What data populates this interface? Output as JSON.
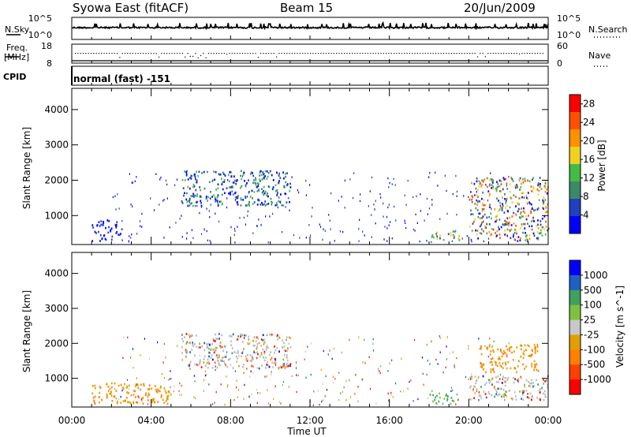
{
  "header": {
    "station": "Syowa East (fitACF)",
    "beam": "Beam 15",
    "date": "20/Jun/2009"
  },
  "noise_panel": {
    "left_label": "N.Sky",
    "right_label": "N.Search",
    "left_ticks": [
      "10^5",
      "10^0"
    ],
    "right_ticks": [
      "10^5",
      "10^0"
    ]
  },
  "freq_panel": {
    "left_label_1": "Freq.",
    "left_label_2": "[MHz]",
    "right_label": "Nave",
    "left_ticks": [
      "18",
      "8"
    ],
    "right_ticks": [
      "60",
      "0"
    ]
  },
  "cpid": {
    "label": "CPID",
    "mode": "normal (fast) -151"
  },
  "colors": {
    "power_scale": [
      "#0000ff",
      "#2040c0",
      "#3a8a6a",
      "#44bb44",
      "#f0d020",
      "#ff9000",
      "#ff5000",
      "#ff0000"
    ],
    "velocity_scale": [
      "#ff0000",
      "#ff4000",
      "#ff8000",
      "#e0a000",
      "#c8c8c8",
      "#80c040",
      "#40a060",
      "#2060c0",
      "#0000ff"
    ],
    "ground_scatter": "#b8b8b8"
  },
  "chart_data": [
    {
      "type": "heatmap",
      "title": "Power",
      "ylabel": "Slant Range [km]",
      "ylim": [
        180,
        4600
      ],
      "yticks": [
        "1000",
        "2000",
        "3000",
        "4000"
      ],
      "xlim_hours": [
        0,
        24
      ],
      "colorbar_label": "Power [dB]",
      "colorbar_ticks": [
        "4",
        "8",
        "12",
        "16",
        "20",
        "24",
        "28"
      ],
      "colorbar_range": [
        0,
        30
      ],
      "echo_regions": [
        {
          "t": [
            1.0,
            2.5
          ],
          "range": [
            300,
            900
          ],
          "level": "low"
        },
        {
          "t": [
            5.5,
            11.0
          ],
          "range": [
            1300,
            2300
          ],
          "level": "low-moderate"
        },
        {
          "t": [
            18.0,
            19.5
          ],
          "range": [
            300,
            600
          ],
          "level": "moderate"
        },
        {
          "t": [
            20.0,
            24.0
          ],
          "range": [
            300,
            2100
          ],
          "level": "moderate-high"
        }
      ]
    },
    {
      "type": "heatmap",
      "title": "Velocity",
      "ylabel": "Slant Range [km]",
      "xlabel": "Time UT",
      "ylim": [
        180,
        4600
      ],
      "yticks": [
        "1000",
        "2000",
        "3000",
        "4000"
      ],
      "xticks": [
        "00:00",
        "04:00",
        "08:00",
        "12:00",
        "16:00",
        "20:00",
        "00:00"
      ],
      "colorbar_label": "Velocity [m s^-1]",
      "colorbar_ticks": [
        "1000",
        "500",
        "100",
        "25",
        "-25",
        "-100",
        "-500",
        "-1000"
      ],
      "echo_regions": [
        {
          "t": [
            1.0,
            5.0
          ],
          "range": [
            300,
            900
          ],
          "sign": "negative"
        },
        {
          "t": [
            5.5,
            11.0
          ],
          "range": [
            1300,
            2300
          ],
          "sign": "mixed/ground"
        },
        {
          "t": [
            18.0,
            19.5
          ],
          "range": [
            300,
            600
          ],
          "sign": "positive"
        },
        {
          "t": [
            20.5,
            23.5
          ],
          "range": [
            1200,
            2000
          ],
          "sign": "negative"
        },
        {
          "t": [
            20.0,
            24.0
          ],
          "range": [
            400,
            1100
          ],
          "sign": "mixed/ground"
        }
      ]
    }
  ]
}
